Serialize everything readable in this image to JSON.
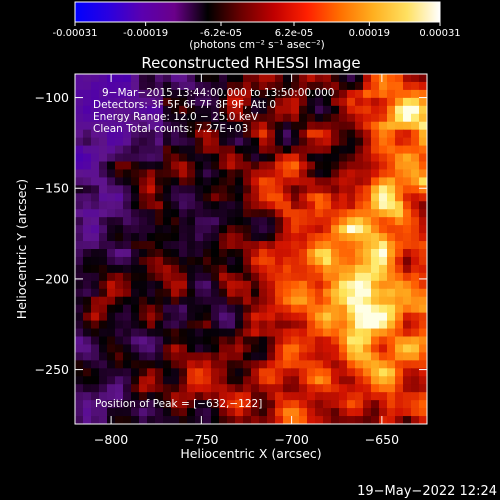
{
  "colorbar": {
    "tick_labels": [
      "-0.00031",
      "-0.00019",
      "-6.2e-05",
      "6.2e-05",
      "0.00019",
      "0.00031"
    ],
    "tick_values": [
      -0.00031,
      -0.00019,
      -6.2e-05,
      6.2e-05,
      0.00019,
      0.00031
    ],
    "range": [
      -0.00031,
      0.00031
    ],
    "unit_label": "(photons cm⁻² s⁻¹ asec⁻²)",
    "colors": [
      "#0000ff",
      "#2a00e0",
      "#5a00b0",
      "#6a008a",
      "#000000",
      "#6a0000",
      "#c00000",
      "#ff2000",
      "#ff7000",
      "#ffb020",
      "#ffe060",
      "#ffffff"
    ]
  },
  "chart_data": {
    "type": "heatmap",
    "title": "Reconstructed RHESSI Image",
    "xlabel": "Heliocentric X (arcsec)",
    "ylabel": "Heliocentric Y (arcsec)",
    "xlim": [
      -820,
      -625
    ],
    "ylim": [
      -280,
      -87
    ],
    "x_ticks": [
      -800,
      -750,
      -700,
      -650
    ],
    "y_ticks": [
      -100,
      -150,
      -200,
      -250
    ],
    "x_tick_labels": [
      "−800",
      "−750",
      "−700",
      "−650"
    ],
    "y_tick_labels": [
      "−100",
      "−150",
      "−200",
      "−250"
    ],
    "annotations": [
      "9−Mar−2015 13:44:00.000 to 13:50:00.000",
      "Detectors: 3F 5F 6F 7F 8F 9F, Att 0",
      "Energy Range: 12.0 − 25.0 keV",
      "Clean     Total counts: 7.27E+03"
    ],
    "peak_label": "Position of Peak = [−632,−122]",
    "peak": [
      -632,
      -122
    ]
  },
  "timestamp": "19−May−2022 12:24"
}
